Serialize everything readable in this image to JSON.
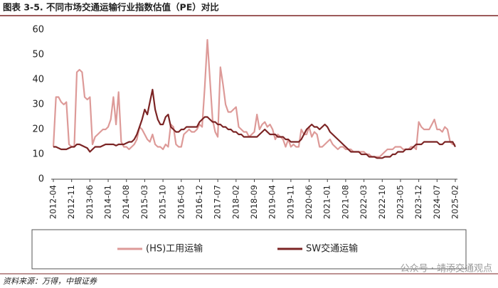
{
  "chart_data": {
    "type": "line",
    "title": "图表 3-5. 不同市场交通运输行业指数估值（PE）对比",
    "source": "资料来源：万得，中银证券",
    "watermark": "公众号 · 靖添交通观点",
    "categories": [
      "2012-04",
      "2012-05",
      "2012-06",
      "2012-07",
      "2012-08",
      "2012-09",
      "2012-10",
      "2012-11",
      "2012-12",
      "2013-01",
      "2013-02",
      "2013-03",
      "2013-04",
      "2013-05",
      "2013-06",
      "2013-07",
      "2013-08",
      "2013-09",
      "2013-10",
      "2013-11",
      "2013-12",
      "2014-01",
      "2014-02",
      "2014-03",
      "2014-04",
      "2014-05",
      "2014-06",
      "2014-07",
      "2014-08",
      "2014-09",
      "2014-10",
      "2014-11",
      "2014-12",
      "2015-01",
      "2015-02",
      "2015-03",
      "2015-04",
      "2015-05",
      "2015-06",
      "2015-07",
      "2015-08",
      "2015-09",
      "2015-10",
      "2015-11",
      "2015-12",
      "2016-01",
      "2016-02",
      "2016-03",
      "2016-04",
      "2016-05",
      "2016-06",
      "2016-07",
      "2016-08",
      "2016-09",
      "2016-10",
      "2016-11",
      "2016-12",
      "2017-01",
      "2017-02",
      "2017-03",
      "2017-04",
      "2017-05",
      "2017-06",
      "2017-07",
      "2017-08",
      "2017-09",
      "2017-10",
      "2017-11",
      "2017-12",
      "2018-01",
      "2018-02",
      "2018-03",
      "2018-04",
      "2018-05",
      "2018-06",
      "2018-07",
      "2018-08",
      "2018-09",
      "2018-10",
      "2018-11",
      "2018-12",
      "2019-01",
      "2019-02",
      "2019-03",
      "2019-04",
      "2019-05",
      "2019-06",
      "2019-07",
      "2019-08",
      "2019-09",
      "2019-10",
      "2019-11",
      "2019-12",
      "2020-01",
      "2020-02",
      "2020-03",
      "2020-04",
      "2020-05",
      "2020-06",
      "2020-07",
      "2020-08",
      "2020-09",
      "2020-10",
      "2020-11",
      "2020-12",
      "2021-01",
      "2021-02",
      "2021-03",
      "2021-04",
      "2021-05",
      "2021-06",
      "2021-07",
      "2021-08",
      "2021-09",
      "2021-10",
      "2021-11",
      "2021-12",
      "2022-01",
      "2022-02",
      "2022-03",
      "2022-04",
      "2022-05",
      "2022-06",
      "2022-07",
      "2022-08",
      "2022-09",
      "2022-10",
      "2022-11",
      "2022-12",
      "2023-01",
      "2023-02",
      "2023-03",
      "2023-04",
      "2023-05",
      "2023-06",
      "2023-07",
      "2023-08",
      "2023-09",
      "2023-10",
      "2023-11",
      "2023-12",
      "2024-01",
      "2024-02",
      "2024-03",
      "2024-04",
      "2024-05",
      "2024-06",
      "2024-07",
      "2024-08",
      "2024-09",
      "2024-10",
      "2024-11",
      "2024-12",
      "2025-01",
      "2025-02"
    ],
    "xticks": [
      "2012-04",
      "2012-11",
      "2013-06",
      "2014-01",
      "2014-08",
      "2015-03",
      "2015-10",
      "2016-05",
      "2016-12",
      "2017-07",
      "2018-02",
      "2018-09",
      "2019-04",
      "2019-11",
      "2020-06",
      "2021-01",
      "2021-08",
      "2022-03",
      "2022-10",
      "2023-05",
      "2023-12",
      "2024-07",
      "2025-02"
    ],
    "series": [
      {
        "name": "(HS)工用运输",
        "color": "#dd9a98",
        "values": [
          13,
          33,
          33,
          31,
          30,
          31,
          14,
          13,
          13,
          43,
          44,
          43,
          33,
          32,
          33,
          14,
          17,
          18,
          19,
          20,
          20,
          21,
          24,
          33,
          22,
          35,
          15,
          13,
          13,
          12,
          13,
          14,
          16,
          21,
          20,
          18,
          16,
          15,
          18,
          14,
          13,
          13,
          12,
          14,
          13,
          22,
          21,
          14,
          13,
          13,
          18,
          19,
          20,
          19,
          19,
          20,
          22,
          21,
          37,
          56,
          40,
          24,
          19,
          17,
          45,
          38,
          30,
          27,
          27,
          28,
          29,
          21,
          20,
          19,
          19,
          17,
          18,
          19,
          26,
          20,
          22,
          23,
          21,
          22,
          20,
          16,
          18,
          17,
          16,
          13,
          16,
          13,
          14,
          13,
          13,
          20,
          18,
          18,
          21,
          17,
          19,
          18,
          13,
          13,
          14,
          15,
          16,
          14,
          13,
          12,
          13,
          13,
          12,
          12,
          12,
          11,
          11,
          11,
          11,
          11,
          10,
          10,
          9,
          9,
          9,
          9,
          10,
          11,
          12,
          12,
          12,
          13,
          13,
          13,
          12,
          12,
          12,
          13,
          13,
          12,
          23,
          21,
          20,
          20,
          20,
          22,
          24,
          20,
          20,
          19,
          21,
          20,
          15,
          14,
          14
        ]
      },
      {
        "name": "SW交通运输",
        "color": "#7b2424",
        "values": [
          13,
          13,
          12.5,
          12,
          12,
          12,
          12.5,
          13,
          13,
          14,
          14,
          13.5,
          13,
          12.5,
          11,
          12,
          13,
          13,
          13,
          13.5,
          14,
          14,
          14,
          14,
          13.5,
          14,
          14,
          14,
          14.5,
          15,
          15,
          16,
          18,
          21,
          24,
          28,
          26,
          31,
          36,
          28,
          24,
          22,
          22,
          25,
          26,
          21,
          20,
          19,
          19,
          20,
          20,
          21,
          21,
          21,
          21,
          21,
          23,
          24,
          25,
          25,
          24,
          23,
          23,
          22,
          22,
          21,
          21,
          20,
          20,
          19,
          19,
          18,
          18,
          17,
          17,
          17,
          17,
          17,
          17,
          18,
          19,
          20,
          19,
          18,
          18,
          18,
          17,
          17,
          17,
          16,
          16,
          15,
          15,
          15,
          15,
          16,
          18,
          20,
          21,
          22,
          21,
          21,
          20,
          21,
          22,
          21,
          19,
          18,
          17,
          16,
          15,
          14,
          13,
          12,
          11,
          11,
          11,
          11,
          10,
          10,
          10,
          9,
          9,
          9,
          8.5,
          8.5,
          8.5,
          9,
          9,
          9,
          10,
          10,
          11,
          11,
          11,
          12,
          12,
          12,
          13,
          14,
          14,
          14,
          15,
          15,
          15,
          15,
          15,
          15,
          14,
          14,
          15,
          15,
          15,
          15,
          13
        ]
      }
    ],
    "ylim": [
      0,
      60
    ],
    "yticks": [
      0,
      10,
      20,
      30,
      40,
      50,
      60
    ],
    "legend": "bottom"
  }
}
